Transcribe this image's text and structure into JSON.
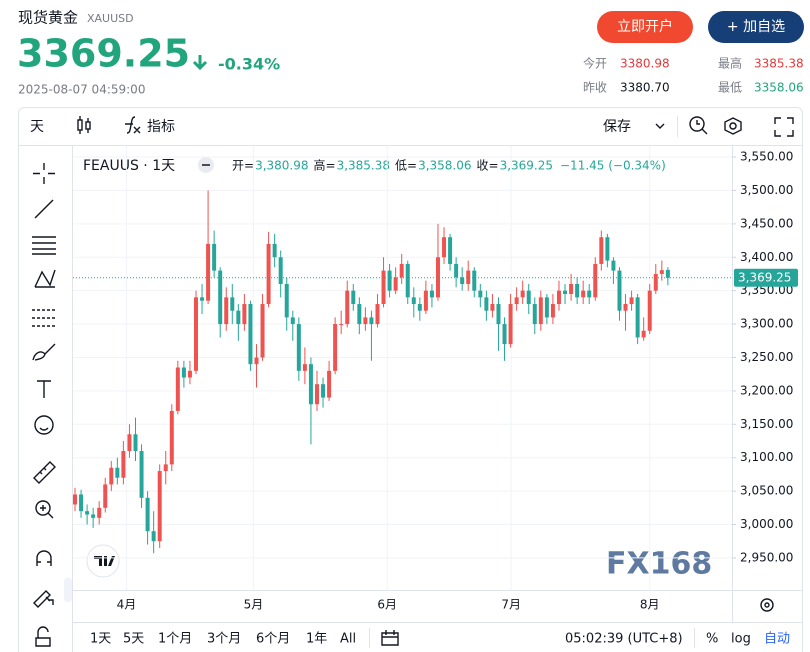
{
  "header": {
    "title": "现货黄金",
    "symbol": "XAUUSD",
    "price": "3369.25",
    "change": "-0.34%",
    "timestamp": "2025-08-07 04:59:00",
    "buttons": [
      "立即开户",
      "+ 加自选"
    ],
    "stats": [
      {
        "label": "今开",
        "value": "3380.98"
      },
      {
        "label": "最高",
        "value": "3385.38"
      },
      {
        "label": "昨收",
        "value": "3380.70"
      },
      {
        "label": "最低",
        "value": "3358.06"
      }
    ]
  },
  "toolbar": {
    "interval": "天",
    "indicators": "指标",
    "save": "保存"
  },
  "legend": {
    "symbol": "FEAUUS · 1天",
    "items": [
      {
        "label": "开=",
        "value": "3,380.98"
      },
      {
        "label": "高=",
        "value": "3,385.38"
      },
      {
        "label": "低=",
        "value": "3,358.06"
      },
      {
        "label": "收=",
        "value": "3,369.25"
      }
    ],
    "change": "−11.45 (−0.34%)"
  },
  "watermark": "FX168",
  "chart_data": {
    "type": "candlestick",
    "up_color": "#ef5350",
    "down_color": "#26a69a",
    "grid": true,
    "open": [
      3030,
      3045,
      3020,
      3015,
      3010,
      3025,
      3060,
      3085,
      3070,
      3110,
      3135,
      3110,
      3040,
      2990,
      2975,
      3080,
      3090,
      3170,
      3235,
      3220,
      3230,
      3340,
      3335,
      3420,
      3380,
      3300,
      3340,
      3320,
      3300,
      3330,
      3240,
      3250,
      3330,
      3420,
      3400,
      3360,
      3310,
      3300,
      3230,
      3240,
      3180,
      3210,
      3190,
      3230,
      3300,
      3300,
      3350,
      3330,
      3300,
      3310,
      3300,
      3330,
      3380,
      3350,
      3370,
      3390,
      3340,
      3330,
      3320,
      3350,
      3340,
      3400,
      3430,
      3390,
      3370,
      3360,
      3380,
      3350,
      3340,
      3320,
      3330,
      3300,
      3270,
      3330,
      3340,
      3350,
      3330,
      3300,
      3340,
      3310,
      3330,
      3350,
      3345,
      3360,
      3340,
      3350,
      3340,
      3390,
      3430,
      3395,
      3380,
      3320,
      3330,
      3340,
      3280,
      3290,
      3350,
      3375,
      3380.98
    ],
    "high": [
      3055,
      3052,
      3030,
      3025,
      3035,
      3070,
      3095,
      3100,
      3125,
      3150,
      3160,
      3120,
      3050,
      3020,
      3090,
      3110,
      3180,
      3245,
      3245,
      3245,
      3350,
      3360,
      3500,
      3440,
      3385,
      3355,
      3360,
      3330,
      3345,
      3335,
      3270,
      3345,
      3438,
      3435,
      3410,
      3370,
      3320,
      3310,
      3265,
      3250,
      3230,
      3220,
      3245,
      3310,
      3320,
      3365,
      3360,
      3340,
      3325,
      3320,
      3345,
      3400,
      3390,
      3385,
      3405,
      3395,
      3355,
      3340,
      3365,
      3360,
      3450,
      3445,
      3435,
      3400,
      3385,
      3395,
      3385,
      3360,
      3350,
      3345,
      3340,
      3310,
      3345,
      3355,
      3365,
      3360,
      3340,
      3350,
      3345,
      3345,
      3365,
      3360,
      3375,
      3370,
      3365,
      3360,
      3400,
      3440,
      3435,
      3400,
      3385,
      3345,
      3350,
      3345,
      3310,
      3360,
      3390,
      3395,
      3385.38
    ],
    "low": [
      3020,
      3010,
      3000,
      2995,
      3000,
      3018,
      3050,
      3060,
      3060,
      3100,
      3095,
      3025,
      2970,
      2957,
      2965,
      3060,
      3080,
      3165,
      3205,
      3210,
      3225,
      3315,
      3330,
      3370,
      3280,
      3290,
      3300,
      3275,
      3290,
      3230,
      3205,
      3245,
      3325,
      3385,
      3340,
      3290,
      3275,
      3215,
      3210,
      3120,
      3170,
      3175,
      3185,
      3225,
      3285,
      3295,
      3320,
      3285,
      3290,
      3245,
      3295,
      3325,
      3340,
      3345,
      3360,
      3330,
      3310,
      3305,
      3315,
      3325,
      3335,
      3390,
      3380,
      3355,
      3350,
      3350,
      3340,
      3325,
      3305,
      3310,
      3260,
      3245,
      3265,
      3320,
      3330,
      3315,
      3285,
      3290,
      3300,
      3300,
      3320,
      3330,
      3335,
      3330,
      3330,
      3330,
      3335,
      3380,
      3385,
      3360,
      3305,
      3290,
      3320,
      3270,
      3275,
      3285,
      3345,
      3365,
      3358.06
    ],
    "close": [
      3045,
      3020,
      3015,
      3010,
      3025,
      3060,
      3085,
      3070,
      3110,
      3135,
      3110,
      3040,
      2990,
      2975,
      3080,
      3090,
      3170,
      3235,
      3220,
      3230,
      3340,
      3335,
      3420,
      3380,
      3300,
      3340,
      3320,
      3300,
      3330,
      3240,
      3250,
      3330,
      3420,
      3400,
      3360,
      3310,
      3300,
      3230,
      3240,
      3180,
      3210,
      3190,
      3230,
      3300,
      3300,
      3350,
      3330,
      3300,
      3310,
      3300,
      3330,
      3380,
      3350,
      3370,
      3390,
      3340,
      3330,
      3320,
      3350,
      3340,
      3400,
      3430,
      3390,
      3370,
      3360,
      3380,
      3350,
      3340,
      3320,
      3330,
      3300,
      3270,
      3330,
      3340,
      3350,
      3330,
      3300,
      3340,
      3310,
      3330,
      3350,
      3345,
      3360,
      3340,
      3350,
      3340,
      3390,
      3430,
      3395,
      3380,
      3320,
      3330,
      3340,
      3280,
      3290,
      3350,
      3375,
      3380.7,
      3369.25
    ],
    "last_price_label": "3,369.25",
    "ylim": [
      2902,
      3566.5
    ],
    "yticks": [
      {
        "value": 2950,
        "label": "2,950.00"
      },
      {
        "value": 3000,
        "label": "3,000.00"
      },
      {
        "value": 3050,
        "label": "3,050.00"
      },
      {
        "value": 3100,
        "label": "3,100.00"
      },
      {
        "value": 3150,
        "label": "3,150.00"
      },
      {
        "value": 3200,
        "label": "3,200.00"
      },
      {
        "value": 3250,
        "label": "3,250.00"
      },
      {
        "value": 3300,
        "label": "3,300.00"
      },
      {
        "value": 3350,
        "label": "3,350.00"
      },
      {
        "value": 3400,
        "label": "3,400.00"
      },
      {
        "value": 3450,
        "label": "3,450.00"
      },
      {
        "value": 3500,
        "label": "3,500.00"
      },
      {
        "value": 3550,
        "label": "3,550.00"
      }
    ],
    "xlim": [
      -0.33,
      108.6
    ],
    "xticks": [
      {
        "value": 8.5,
        "label": "4月"
      },
      {
        "value": 29.5,
        "label": "5月"
      },
      {
        "value": 51.6,
        "label": "6月"
      },
      {
        "value": 72.1,
        "label": "7月"
      },
      {
        "value": 95,
        "label": "8月"
      }
    ]
  },
  "bottom_bar": {
    "ranges": [
      "1天",
      "5天",
      "1个月",
      "3个月",
      "6个月",
      "1年",
      "All"
    ],
    "time": "05:02:39 (UTC+8)",
    "percent": "%",
    "log": "log",
    "auto": "自动"
  }
}
